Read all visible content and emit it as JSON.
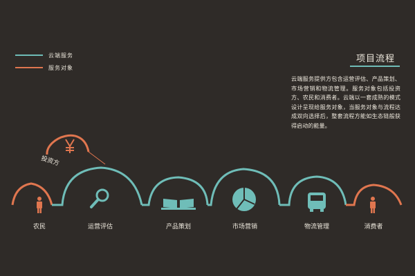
{
  "legend": [
    {
      "label": "云端服务",
      "color": "#6fbdb8"
    },
    {
      "label": "服务对象",
      "color": "#e0764f"
    }
  ],
  "title": "项目流程",
  "description": "云端服务提供方包含运营评估、产品策划、市场营销和物流管理。服务对象包括投资方、农民和消费者。云端以一套成熟的模式设计呈现给服务对象，当服务对象与流程达成双向选择后，整套流程方能如生态链般获得启动的能量。",
  "investor": {
    "label": "投资方",
    "icon": "yen-icon"
  },
  "nodes": [
    {
      "label": "农民",
      "icon": "person-icon"
    },
    {
      "label": "运营评估",
      "icon": "magnifier-icon"
    },
    {
      "label": "产品策划",
      "icon": "open-book-icon"
    },
    {
      "label": "市场营销",
      "icon": "pie-chart-icon"
    },
    {
      "label": "物流管理",
      "icon": "truck-icon"
    },
    {
      "label": "消费者",
      "icon": "person-icon"
    }
  ],
  "colors": {
    "background": "#2f2b28",
    "service": "#6fbdb8",
    "client": "#e0764f",
    "text": "#ece7dc"
  }
}
